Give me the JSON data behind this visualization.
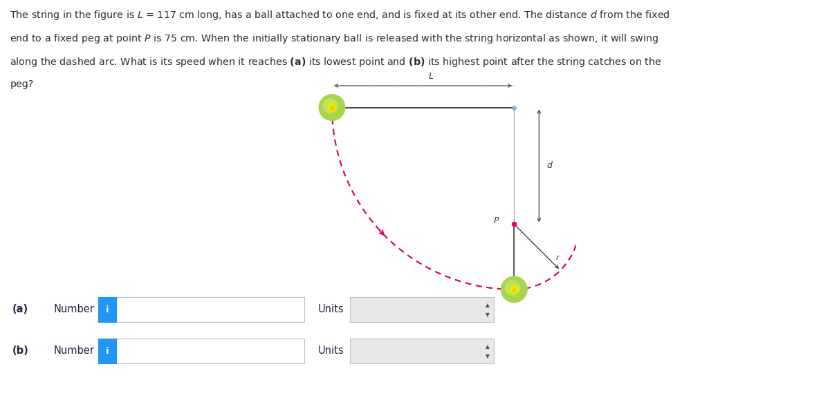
{
  "bg_color": "#ffffff",
  "text_color": "#2d2d2d",
  "fig_width": 12.0,
  "fig_height": 5.89,
  "dashed_color": "#e0006a",
  "ball_color_outer": "#a8d44d",
  "ball_color_inner": "#f0e800",
  "peg_color": "#e8007a",
  "string_color": "#444444",
  "arrow_color": "#333333",
  "fixed_point_color": "#8ab4d4",
  "support_line_color": "#aaaaaa",
  "L_label": "L",
  "d_label": "d",
  "r_label": "r",
  "P_label": "P",
  "input_box_border": "#cccccc",
  "input_box_blue": "#2196f3",
  "units_box_color": "#e0e0e0",
  "text_lines": [
    "The string in the figure is $\\it{L}$ = 117 cm long, has a ball attached to one end, and is fixed at its other end. The distance $\\it{d}$ from the fixed",
    "end to a fixed peg at point $\\it{P}$ is 75 cm. When the initially stationary ball is released with the string horizontal as shown, it will swing",
    "along the dashed arc. What is its speed when it reaches $\\mathbf{(a)}$ its lowest point and $\\mathbf{(b)}$ its highest point after the string catches on the",
    "peg?"
  ]
}
